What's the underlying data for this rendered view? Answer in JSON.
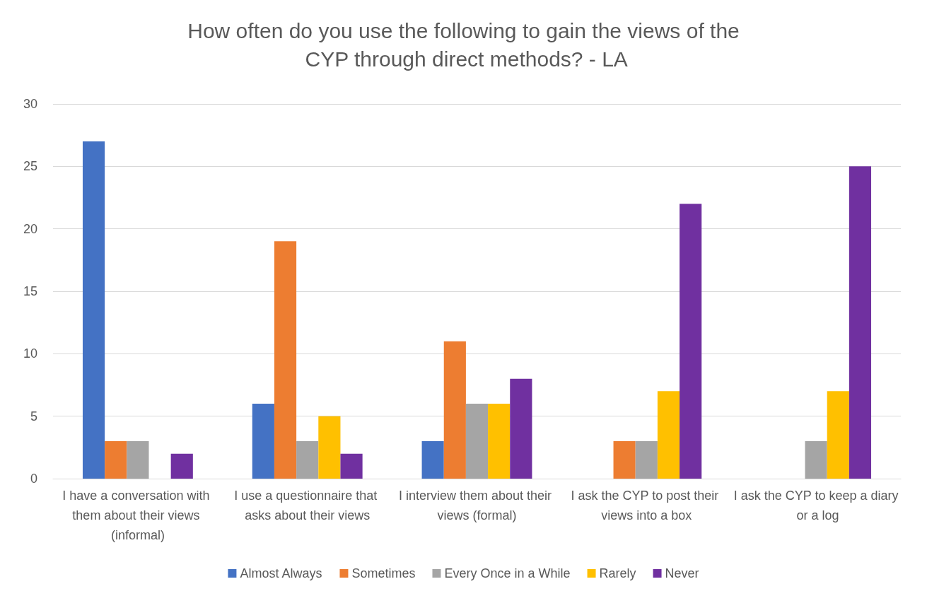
{
  "chart_data": {
    "type": "bar",
    "title": "How often do you use the following to gain the views of the CYP through direct methods? - LA",
    "categories": [
      "I have a conversation with them about their views (informal)",
      "I use a questionnaire that asks about their views",
      "I interview them about their views (formal)",
      "I ask the CYP to post their views into a box",
      "I ask the CYP to keep a diary or a log"
    ],
    "series": [
      {
        "name": "Almost Always",
        "color": "#4472c4",
        "values": [
          27,
          6,
          3,
          0,
          0
        ]
      },
      {
        "name": "Sometimes",
        "color": "#ed7d31",
        "values": [
          3,
          19,
          11,
          3,
          0
        ]
      },
      {
        "name": "Every Once in a While",
        "color": "#a5a5a5",
        "values": [
          3,
          3,
          6,
          3,
          3
        ]
      },
      {
        "name": "Rarely",
        "color": "#ffc000",
        "values": [
          0,
          5,
          6,
          7,
          7
        ]
      },
      {
        "name": "Never",
        "color": "#7030a0",
        "values": [
          2,
          2,
          8,
          22,
          25
        ]
      }
    ],
    "ylim": [
      0,
      30
    ],
    "yticks": [
      0,
      5,
      10,
      15,
      20,
      25,
      30
    ],
    "grid": "y",
    "legend": "bottom"
  }
}
